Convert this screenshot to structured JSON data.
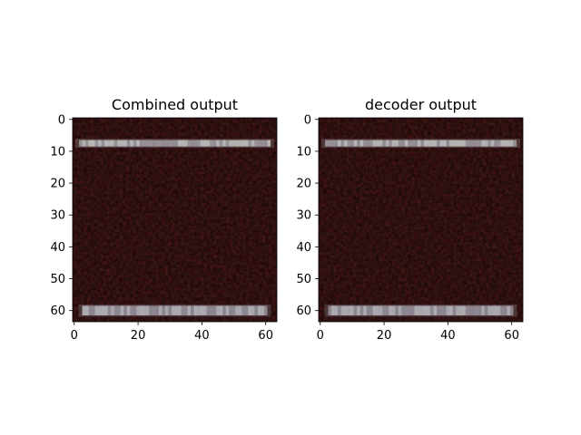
{
  "chart_data": [
    {
      "type": "heatmap",
      "title": "Combined output",
      "xlabel": "",
      "ylabel": "",
      "image_size": [
        64,
        64
      ],
      "xlim": [
        -0.5,
        63.5
      ],
      "ylim": [
        63.5,
        -0.5
      ],
      "xticks": [
        0,
        20,
        40,
        60
      ],
      "yticks": [
        0,
        10,
        20,
        30,
        40,
        50,
        60
      ],
      "xtick_labels": [
        "0",
        "20",
        "40",
        "60"
      ],
      "ytick_labels": [
        "0",
        "10",
        "20",
        "30",
        "40",
        "50",
        "60"
      ],
      "background_color": "#140404",
      "bright_bands": [
        {
          "rows": [
            7,
            8
          ],
          "cols": [
            2,
            61
          ],
          "color": "#b8b8b8"
        },
        {
          "rows": [
            59,
            61
          ],
          "cols": [
            3,
            60
          ],
          "color": "#a8a8b0"
        }
      ]
    },
    {
      "type": "heatmap",
      "title": "decoder output",
      "xlabel": "",
      "ylabel": "",
      "image_size": [
        64,
        64
      ],
      "xlim": [
        -0.5,
        63.5
      ],
      "ylim": [
        63.5,
        -0.5
      ],
      "xticks": [
        0,
        20,
        40,
        60
      ],
      "yticks": [
        0,
        10,
        20,
        30,
        40,
        50,
        60
      ],
      "xtick_labels": [
        "0",
        "20",
        "40",
        "60"
      ],
      "ytick_labels": [
        "0",
        "10",
        "20",
        "30",
        "40",
        "50",
        "60"
      ],
      "background_color": "#140404",
      "bright_bands": [
        {
          "rows": [
            7,
            8
          ],
          "cols": [
            2,
            61
          ],
          "color": "#b8b8b8"
        },
        {
          "rows": [
            59,
            61
          ],
          "cols": [
            3,
            60
          ],
          "color": "#a8a8b0"
        }
      ]
    }
  ]
}
